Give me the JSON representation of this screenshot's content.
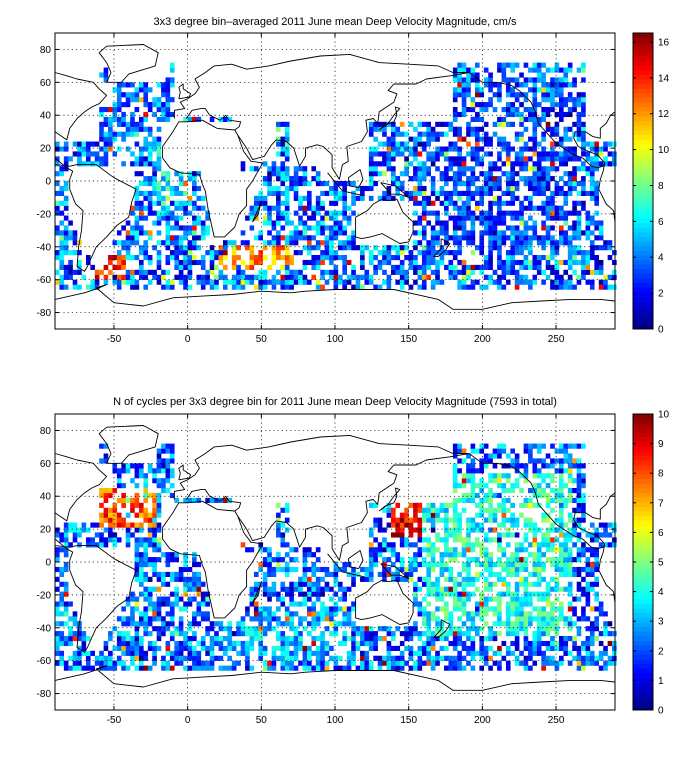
{
  "chart_data": [
    {
      "type": "heatmap",
      "title": "3x3 degree bin–averaged 2011 June mean Deep Velocity Magnitude, cm/s",
      "xlabel": "",
      "ylabel": "",
      "xlim": [
        -90,
        290
      ],
      "ylim": [
        -90,
        90
      ],
      "x_ticks": [
        -50,
        0,
        50,
        100,
        150,
        200,
        250
      ],
      "y_ticks": [
        -80,
        -60,
        -40,
        -20,
        0,
        20,
        40,
        60,
        80
      ],
      "grid": true,
      "colormap": "jet",
      "colorbar": {
        "min": 0,
        "max": 16.5,
        "ticks": [
          0,
          2,
          4,
          6,
          8,
          10,
          12,
          14,
          16
        ]
      },
      "bin_size_deg": 3,
      "regions": [
        {
          "lon": [
            -20,
            0
          ],
          "lat": [
            -12,
            42
          ],
          "value": 6
        },
        {
          "lon": [
            20,
            72
          ],
          "lat": [
            -55,
            -38
          ],
          "value": 12
        },
        {
          "lon": [
            -62,
            -42
          ],
          "lat": [
            -60,
            -45
          ],
          "value": 14
        },
        {
          "lon": [
            162,
            198
          ],
          "lat": [
            -4,
            4
          ],
          "value": 15
        },
        {
          "lon": [
            160,
            260
          ],
          "lat": [
            -45,
            55
          ],
          "value": 3
        },
        {
          "lon": [
            -60,
            -5
          ],
          "lat": [
            20,
            60
          ],
          "value": 4
        }
      ]
    },
    {
      "type": "heatmap",
      "title": "N of cycles per 3x3 degree bin for 2011 June mean Deep Velocity Magnitude (7593 in total)",
      "xlabel": "",
      "ylabel": "",
      "xlim": [
        -90,
        290
      ],
      "ylim": [
        -90,
        90
      ],
      "x_ticks": [
        -50,
        0,
        50,
        100,
        150,
        200,
        250
      ],
      "y_ticks": [
        -80,
        -60,
        -40,
        -20,
        0,
        20,
        40,
        60,
        80
      ],
      "grid": true,
      "colormap": "jet",
      "colorbar": {
        "min": 0,
        "max": 10,
        "ticks": [
          0,
          1,
          2,
          3,
          4,
          5,
          6,
          7,
          8,
          9,
          10
        ]
      },
      "bin_size_deg": 3,
      "regions": [
        {
          "lon": [
            138,
            160
          ],
          "lat": [
            15,
            42
          ],
          "value": 9
        },
        {
          "lon": [
            -60,
            -20
          ],
          "lat": [
            20,
            45
          ],
          "value": 8
        },
        {
          "lon": [
            160,
            260
          ],
          "lat": [
            -45,
            55
          ],
          "value": 4
        },
        {
          "lon": [
            20,
            110
          ],
          "lat": [
            -60,
            -30
          ],
          "value": 3
        }
      ]
    }
  ]
}
